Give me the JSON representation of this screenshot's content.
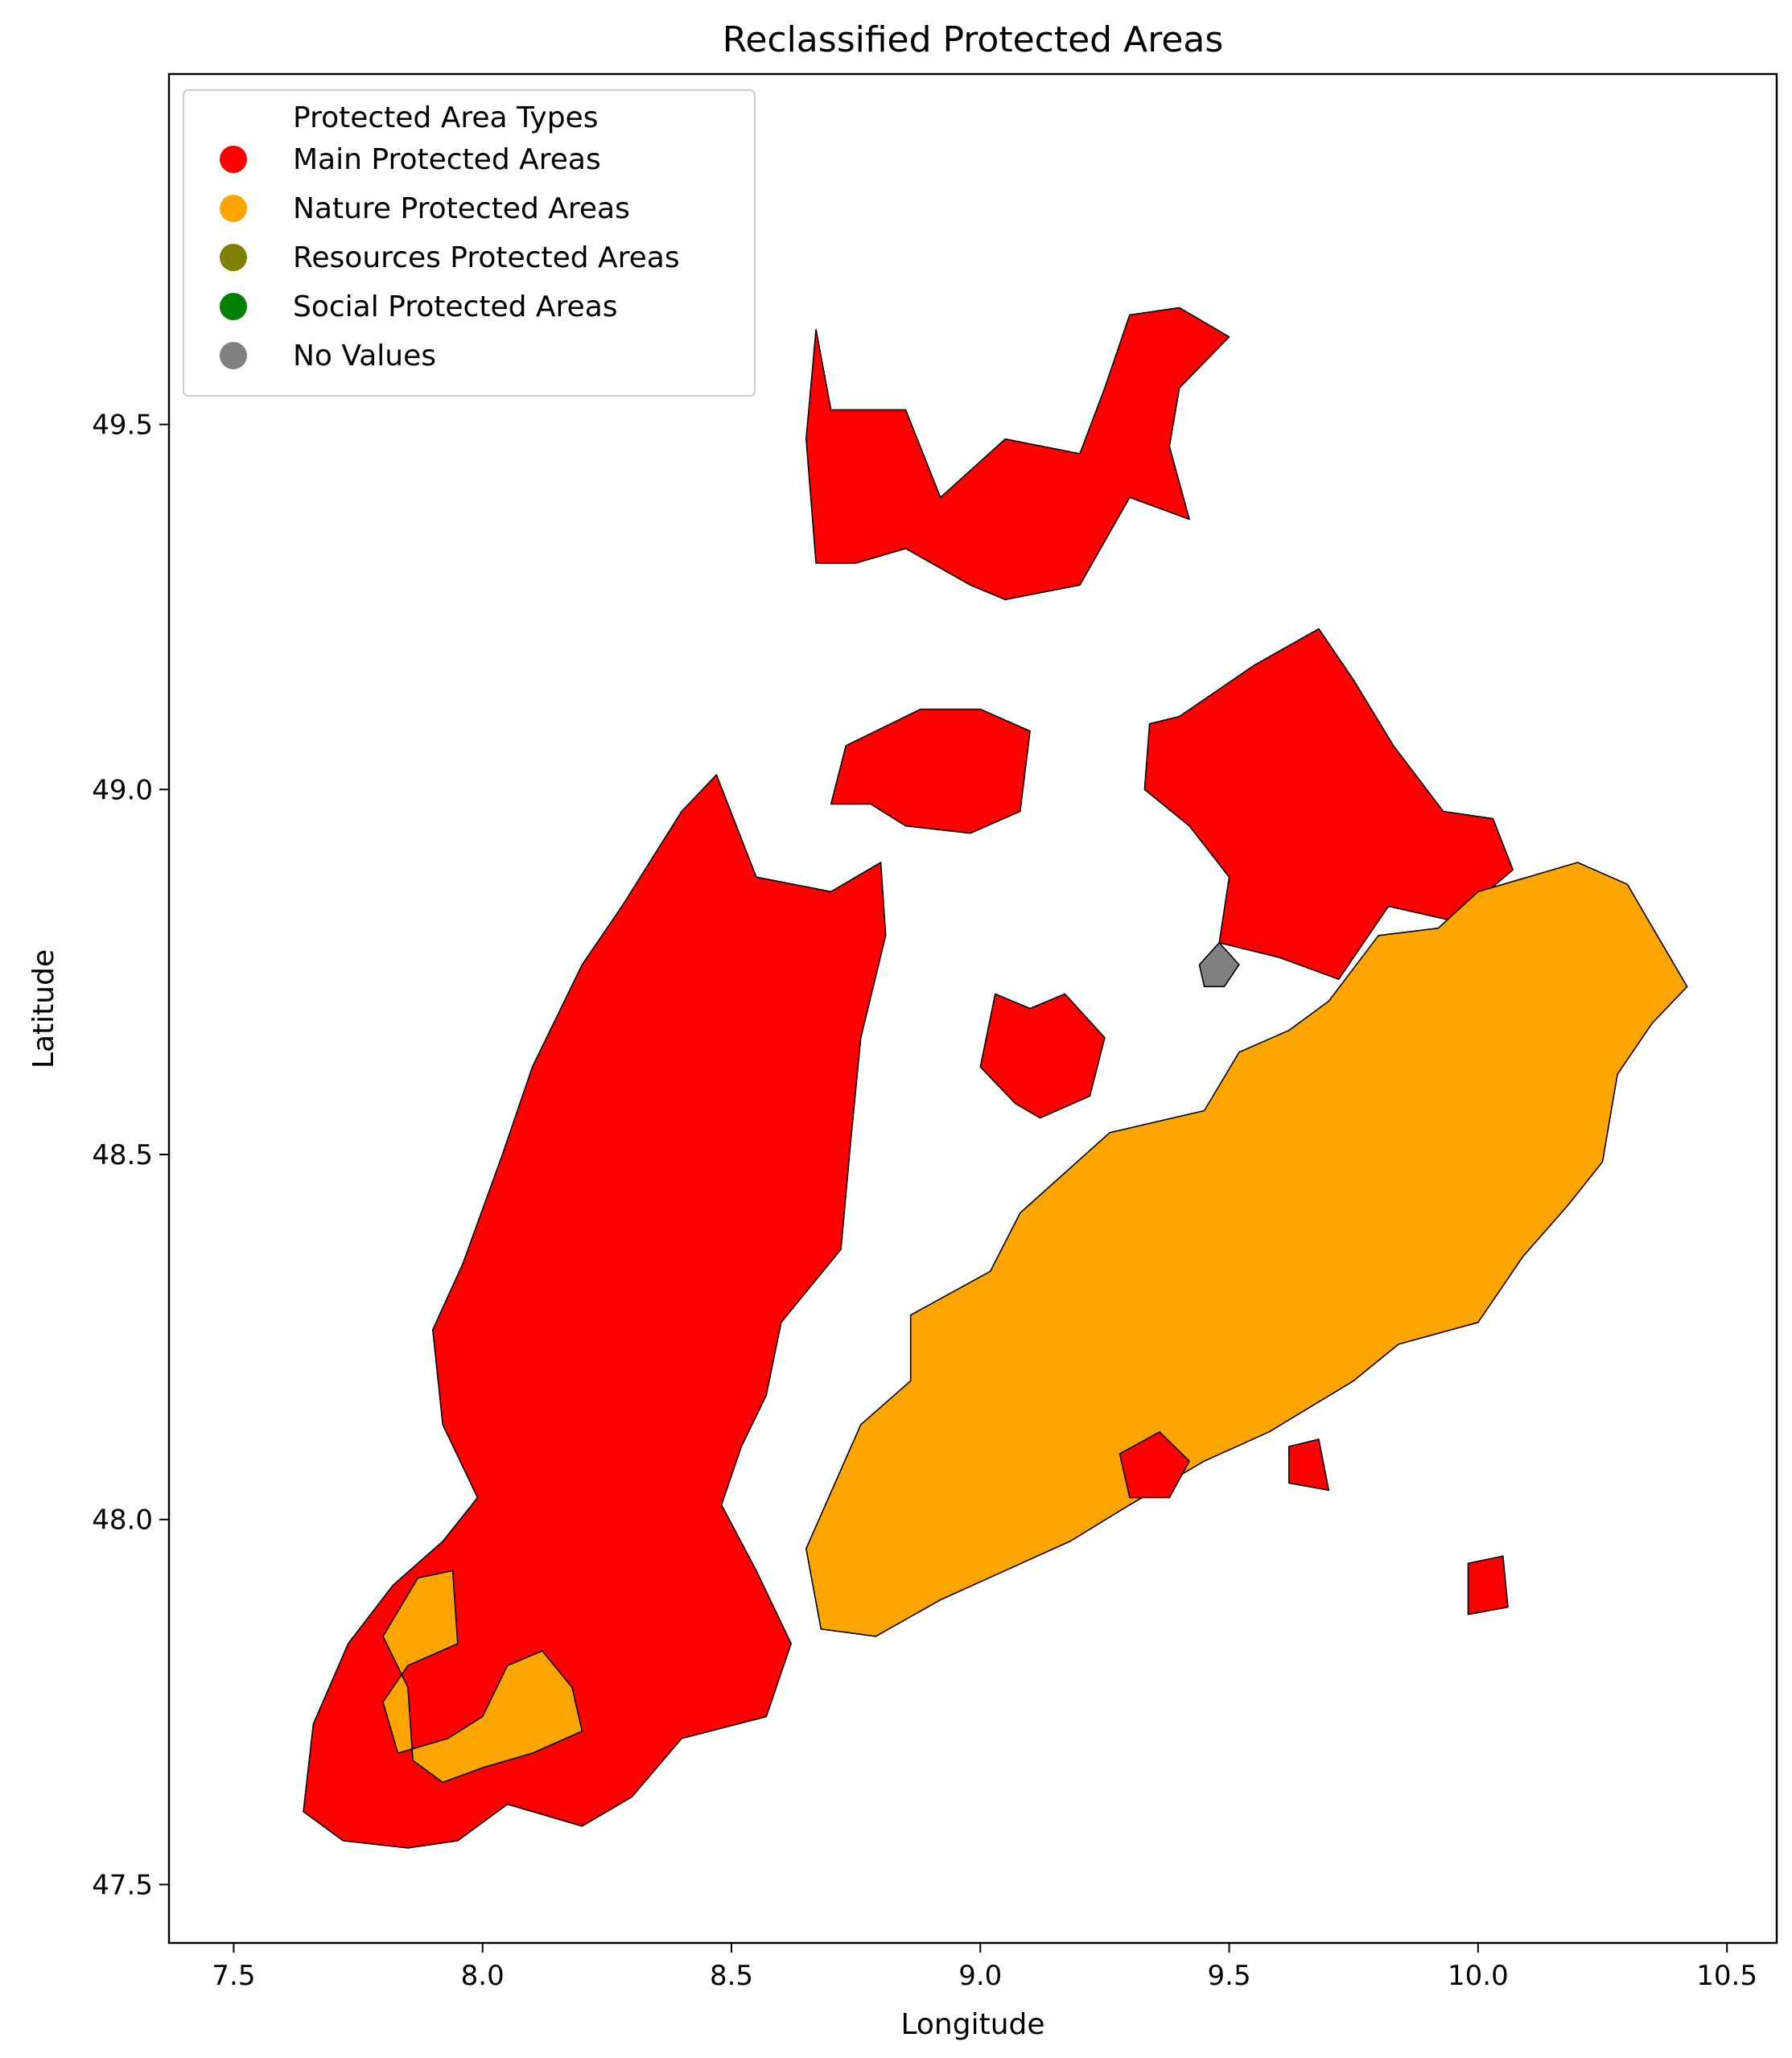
{
  "figure": {
    "title": "Reclassified Protected Areas",
    "xlabel": "Longitude",
    "ylabel": "Latitude"
  },
  "axes": {
    "xlim": [
      7.37,
      10.6
    ],
    "ylim": [
      47.42,
      49.98
    ],
    "xticks": [
      {
        "value": 7.5,
        "label": "7.5"
      },
      {
        "value": 8.0,
        "label": "8.0"
      },
      {
        "value": 8.5,
        "label": "8.5"
      },
      {
        "value": 9.0,
        "label": "9.0"
      },
      {
        "value": 9.5,
        "label": "9.5"
      },
      {
        "value": 10.0,
        "label": "10.0"
      },
      {
        "value": 10.5,
        "label": "10.5"
      }
    ],
    "yticks": [
      {
        "value": 47.5,
        "label": "47.5"
      },
      {
        "value": 48.0,
        "label": "48.0"
      },
      {
        "value": 48.5,
        "label": "48.5"
      },
      {
        "value": 49.0,
        "label": "49.0"
      },
      {
        "value": 49.5,
        "label": "49.5"
      }
    ]
  },
  "legend": {
    "title": "Protected Area Types",
    "placement": "upper-left",
    "items": [
      {
        "key": "main",
        "label": "Main Protected Areas",
        "color": "#ff0000"
      },
      {
        "key": "nature",
        "label": "Nature Protected Areas",
        "color": "#ffa500"
      },
      {
        "key": "resources",
        "label": "Resources Protected Areas",
        "color": "#808000"
      },
      {
        "key": "social",
        "label": "Social Protected Areas",
        "color": "#008000"
      },
      {
        "key": "none",
        "label": "No Values",
        "color": "#808080"
      }
    ]
  },
  "chart_data": {
    "type": "choropleth-map",
    "title": "Reclassified Protected Areas",
    "xlabel": "Longitude",
    "ylabel": "Latitude",
    "xlim": [
      7.37,
      10.6
    ],
    "ylim": [
      47.42,
      49.98
    ],
    "regions": [
      {
        "id": "north-main",
        "class": "main",
        "coords": [
          [
            8.67,
            49.63
          ],
          [
            8.7,
            49.52
          ],
          [
            8.85,
            49.52
          ],
          [
            8.92,
            49.4
          ],
          [
            9.05,
            49.48
          ],
          [
            9.2,
            49.46
          ],
          [
            9.25,
            49.55
          ],
          [
            9.3,
            49.65
          ],
          [
            9.4,
            49.66
          ],
          [
            9.5,
            49.62
          ],
          [
            9.4,
            49.55
          ],
          [
            9.38,
            49.47
          ],
          [
            9.42,
            49.37
          ],
          [
            9.3,
            49.4
          ],
          [
            9.2,
            49.28
          ],
          [
            9.05,
            49.26
          ],
          [
            8.98,
            49.28
          ],
          [
            8.85,
            49.33
          ],
          [
            8.75,
            49.31
          ],
          [
            8.67,
            49.31
          ],
          [
            8.65,
            49.48
          ]
        ]
      },
      {
        "id": "heilbronn-main",
        "class": "main",
        "coords": [
          [
            8.73,
            49.06
          ],
          [
            8.88,
            49.11
          ],
          [
            9.0,
            49.11
          ],
          [
            9.1,
            49.08
          ],
          [
            9.08,
            48.97
          ],
          [
            8.98,
            48.94
          ],
          [
            8.85,
            48.95
          ],
          [
            8.78,
            48.98
          ],
          [
            8.7,
            48.98
          ]
        ]
      },
      {
        "id": "east-main",
        "class": "main",
        "coords": [
          [
            9.4,
            49.1
          ],
          [
            9.55,
            49.17
          ],
          [
            9.68,
            49.22
          ],
          [
            9.75,
            49.15
          ],
          [
            9.83,
            49.06
          ],
          [
            9.93,
            48.97
          ],
          [
            10.03,
            48.96
          ],
          [
            10.07,
            48.89
          ],
          [
            9.95,
            48.82
          ],
          [
            9.82,
            48.84
          ],
          [
            9.72,
            48.74
          ],
          [
            9.6,
            48.77
          ],
          [
            9.48,
            48.79
          ],
          [
            9.5,
            48.88
          ],
          [
            9.42,
            48.95
          ],
          [
            9.33,
            49.0
          ],
          [
            9.34,
            49.09
          ]
        ]
      },
      {
        "id": "black-forest-main",
        "class": "main",
        "coords": [
          [
            8.47,
            49.02
          ],
          [
            8.55,
            48.88
          ],
          [
            8.7,
            48.86
          ],
          [
            8.8,
            48.9
          ],
          [
            8.81,
            48.8
          ],
          [
            8.76,
            48.66
          ],
          [
            8.74,
            48.52
          ],
          [
            8.72,
            48.37
          ],
          [
            8.6,
            48.27
          ],
          [
            8.57,
            48.17
          ],
          [
            8.52,
            48.1
          ],
          [
            8.48,
            48.02
          ],
          [
            8.55,
            47.93
          ],
          [
            8.62,
            47.83
          ],
          [
            8.57,
            47.73
          ],
          [
            8.4,
            47.7
          ],
          [
            8.3,
            47.62
          ],
          [
            8.2,
            47.58
          ],
          [
            8.05,
            47.61
          ],
          [
            7.95,
            47.56
          ],
          [
            7.85,
            47.55
          ],
          [
            7.72,
            47.56
          ],
          [
            7.64,
            47.6
          ],
          [
            7.66,
            47.72
          ],
          [
            7.73,
            47.83
          ],
          [
            7.82,
            47.91
          ],
          [
            7.92,
            47.97
          ],
          [
            7.99,
            48.03
          ],
          [
            7.92,
            48.13
          ],
          [
            7.9,
            48.26
          ],
          [
            7.96,
            48.35
          ],
          [
            8.04,
            48.5
          ],
          [
            8.1,
            48.62
          ],
          [
            8.2,
            48.76
          ],
          [
            8.28,
            48.84
          ],
          [
            8.4,
            48.97
          ]
        ]
      },
      {
        "id": "east-central-main",
        "class": "main",
        "coords": [
          [
            9.03,
            48.72
          ],
          [
            9.1,
            48.7
          ],
          [
            9.17,
            48.72
          ],
          [
            9.25,
            48.66
          ],
          [
            9.22,
            48.58
          ],
          [
            9.12,
            48.55
          ],
          [
            9.07,
            48.57
          ],
          [
            9.0,
            48.62
          ]
        ]
      },
      {
        "id": "alb-nature",
        "class": "nature",
        "coords": [
          [
            8.68,
            47.85
          ],
          [
            8.65,
            47.96
          ],
          [
            8.76,
            48.13
          ],
          [
            8.86,
            48.19
          ],
          [
            8.86,
            48.28
          ],
          [
            9.02,
            48.34
          ],
          [
            9.08,
            48.42
          ],
          [
            9.26,
            48.53
          ],
          [
            9.45,
            48.56
          ],
          [
            9.52,
            48.64
          ],
          [
            9.62,
            48.67
          ],
          [
            9.7,
            48.71
          ],
          [
            9.8,
            48.8
          ],
          [
            9.92,
            48.81
          ],
          [
            10.0,
            48.86
          ],
          [
            10.1,
            48.88
          ],
          [
            10.2,
            48.9
          ],
          [
            10.3,
            48.87
          ],
          [
            10.36,
            48.8
          ],
          [
            10.42,
            48.73
          ],
          [
            10.35,
            48.68
          ],
          [
            10.28,
            48.61
          ],
          [
            10.25,
            48.49
          ],
          [
            10.18,
            48.43
          ],
          [
            10.09,
            48.36
          ],
          [
            10.0,
            48.27
          ],
          [
            9.84,
            48.24
          ],
          [
            9.75,
            48.19
          ],
          [
            9.58,
            48.12
          ],
          [
            9.45,
            48.08
          ],
          [
            9.3,
            48.02
          ],
          [
            9.18,
            47.97
          ],
          [
            9.05,
            47.93
          ],
          [
            8.92,
            47.89
          ],
          [
            8.79,
            47.84
          ]
        ]
      },
      {
        "id": "southwest-nature",
        "class": "nature",
        "coords": [
          [
            7.94,
            47.93
          ],
          [
            7.95,
            47.83
          ],
          [
            7.85,
            47.8
          ],
          [
            7.8,
            47.75
          ],
          [
            7.83,
            47.68
          ],
          [
            7.93,
            47.7
          ],
          [
            8.0,
            47.73
          ],
          [
            8.05,
            47.8
          ],
          [
            8.12,
            47.82
          ],
          [
            8.18,
            47.77
          ],
          [
            8.2,
            47.71
          ],
          [
            8.1,
            47.68
          ],
          [
            8.0,
            47.66
          ],
          [
            7.92,
            47.64
          ],
          [
            7.86,
            47.67
          ],
          [
            7.85,
            47.77
          ],
          [
            7.8,
            47.84
          ],
          [
            7.87,
            47.92
          ]
        ]
      },
      {
        "id": "holes-no-value-1",
        "class": "none",
        "coords": [
          [
            9.44,
            48.76
          ],
          [
            9.48,
            48.79
          ],
          [
            9.52,
            48.76
          ],
          [
            9.49,
            48.73
          ],
          [
            9.45,
            48.73
          ]
        ]
      },
      {
        "id": "sw-main-island-1",
        "class": "main",
        "coords": [
          [
            9.28,
            48.09
          ],
          [
            9.36,
            48.12
          ],
          [
            9.42,
            48.08
          ],
          [
            9.38,
            48.03
          ],
          [
            9.3,
            48.03
          ]
        ]
      },
      {
        "id": "se-main-island-1",
        "class": "main",
        "coords": [
          [
            9.98,
            47.94
          ],
          [
            10.05,
            47.95
          ],
          [
            10.06,
            47.88
          ],
          [
            9.98,
            47.87
          ]
        ]
      },
      {
        "id": "se-main-island-2",
        "class": "main",
        "coords": [
          [
            9.62,
            48.1
          ],
          [
            9.68,
            48.11
          ],
          [
            9.7,
            48.04
          ],
          [
            9.62,
            48.05
          ]
        ]
      }
    ]
  }
}
